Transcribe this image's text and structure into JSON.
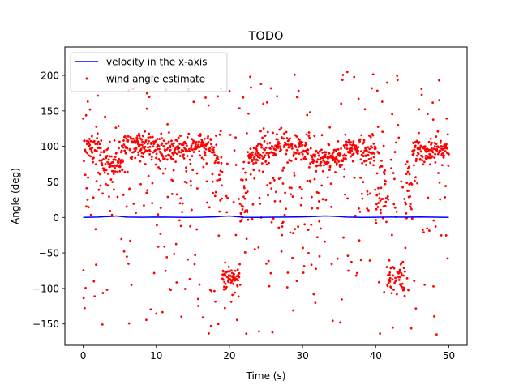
{
  "chart_data": {
    "type": "scatter",
    "title": "TODO",
    "xlabel": "Time (s)",
    "ylabel": "Angle (deg)",
    "xlim": [
      -2.5,
      52.5
    ],
    "ylim": [
      -180,
      240
    ],
    "xticks": [
      0,
      10,
      20,
      30,
      40,
      50
    ],
    "yticks": [
      -150,
      -100,
      -50,
      0,
      50,
      100,
      150,
      200
    ],
    "grid": false,
    "legend_position": "upper left",
    "series": [
      {
        "name": "velocity in the x-axis",
        "type": "line",
        "color": "#0000ff",
        "x": [
          0,
          2,
          4,
          4.5,
          5,
          6,
          8,
          10,
          12,
          14,
          16,
          18,
          19,
          20,
          21,
          22,
          24,
          26,
          28,
          30,
          31,
          32,
          33,
          34,
          35,
          36,
          38,
          40,
          42,
          44,
          46,
          48,
          50
        ],
        "y": [
          0,
          0.5,
          1.5,
          2,
          1.5,
          0.5,
          0.2,
          0.5,
          0.3,
          0,
          0.2,
          0.8,
          1.5,
          2,
          1,
          0.2,
          0,
          0.3,
          0.5,
          0.8,
          1,
          1.5,
          2,
          1.8,
          1.2,
          0.5,
          0,
          0.2,
          0.5,
          0.4,
          0.6,
          0.3,
          0
        ]
      },
      {
        "name": "wind angle estimate",
        "type": "scatter",
        "color": "#ff0000",
        "note": "sampled approximation of ~1500 noisy points",
        "segments": [
          {
            "t0": 0,
            "t1": 2.5,
            "center": 98,
            "spread": 14
          },
          {
            "t0": 2.5,
            "t1": 5.5,
            "center": 80,
            "spread": 15
          },
          {
            "t0": 5.5,
            "t1": 10,
            "center": 100,
            "spread": 12
          },
          {
            "t0": 10,
            "t1": 18,
            "center": 97,
            "spread": 13
          },
          {
            "t0": 18,
            "t1": 19,
            "center": 70,
            "spread": 30
          },
          {
            "t0": 19,
            "t1": 21.5,
            "center": -85,
            "spread": 14
          },
          {
            "t0": 21.5,
            "t1": 22.5,
            "center": 20,
            "spread": 40
          },
          {
            "t0": 22.5,
            "t1": 25.5,
            "center": 88,
            "spread": 14
          },
          {
            "t0": 25.5,
            "t1": 31,
            "center": 100,
            "spread": 12
          },
          {
            "t0": 31,
            "t1": 35.5,
            "center": 82,
            "spread": 12
          },
          {
            "t0": 35.5,
            "t1": 40,
            "center": 95,
            "spread": 14
          },
          {
            "t0": 40,
            "t1": 41.5,
            "center": 30,
            "spread": 35
          },
          {
            "t0": 41.5,
            "t1": 44,
            "center": -85,
            "spread": 18
          },
          {
            "t0": 44,
            "t1": 45,
            "center": 40,
            "spread": 35
          },
          {
            "t0": 45,
            "t1": 50,
            "center": 95,
            "spread": 14
          }
        ],
        "outlier_fraction": 0.32,
        "outlier_range": [
          -165,
          205
        ]
      }
    ]
  }
}
